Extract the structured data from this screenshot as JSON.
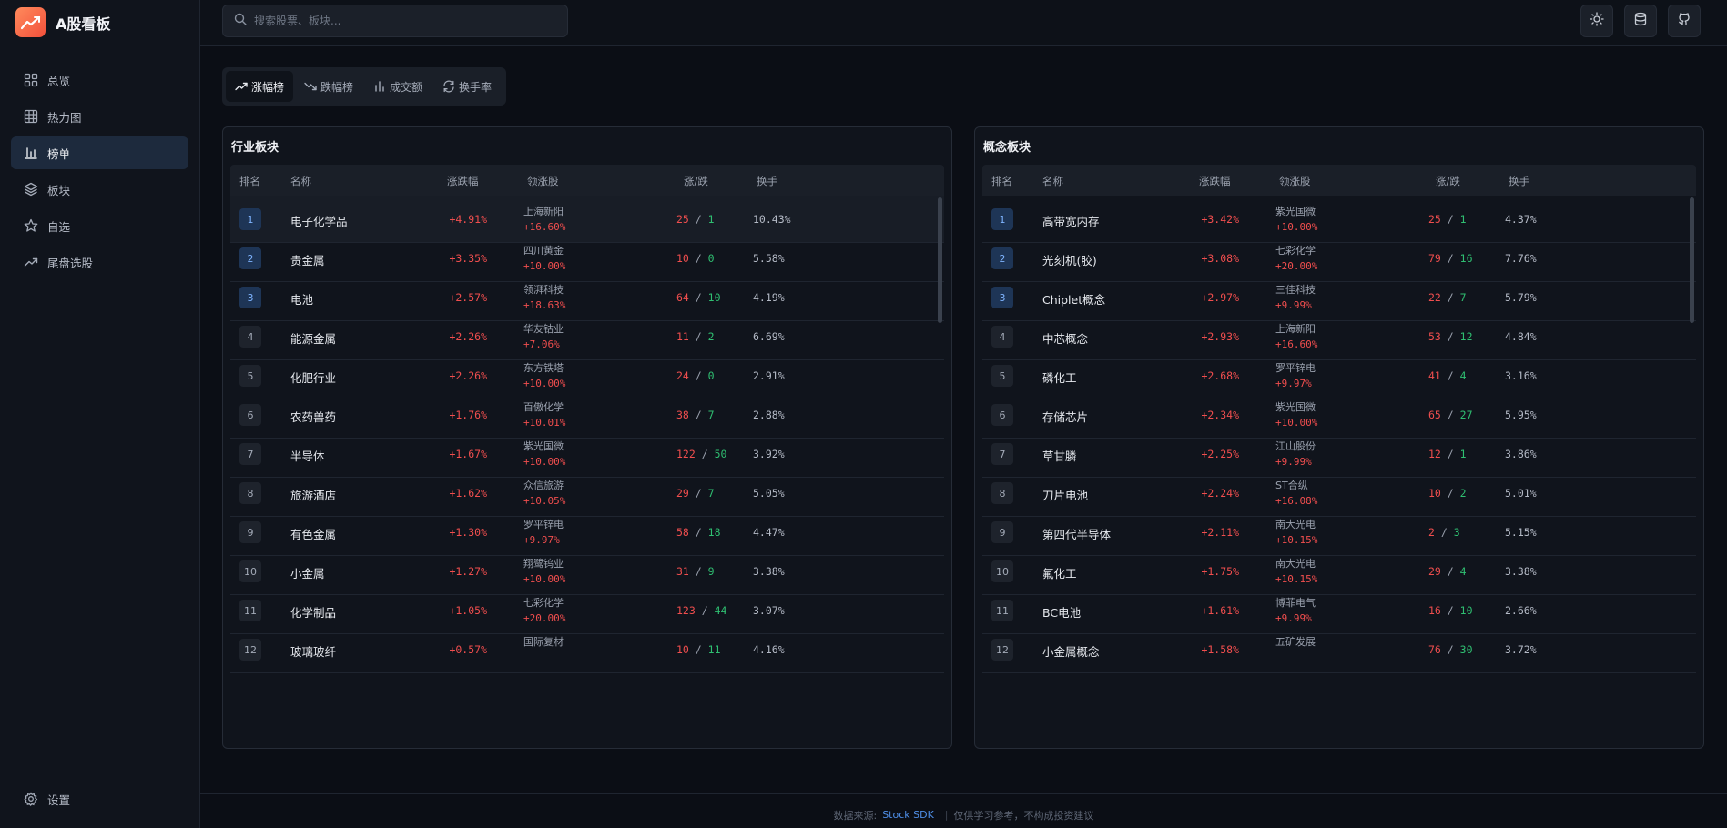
{
  "app": {
    "title": "A股看板"
  },
  "nav": {
    "items": [
      {
        "label": "总览",
        "icon": "grid-icon"
      },
      {
        "label": "热力图",
        "icon": "table-icon"
      },
      {
        "label": "榜单",
        "icon": "bar-chart-icon",
        "active": true
      },
      {
        "label": "板块",
        "icon": "layers-icon"
      },
      {
        "label": "自选",
        "icon": "star-icon"
      },
      {
        "label": "尾盘选股",
        "icon": "trending-up-icon"
      }
    ],
    "settings_label": "设置"
  },
  "search": {
    "placeholder": "搜索股票、板块..."
  },
  "tabs": [
    {
      "label": "涨幅榜",
      "active": true
    },
    {
      "label": "跌幅榜"
    },
    {
      "label": "成交额"
    },
    {
      "label": "换手率"
    }
  ],
  "columns": {
    "rank": "排名",
    "name": "名称",
    "change": "涨跌幅",
    "leader": "领涨股",
    "updown": "涨/跌",
    "turnover": "换手"
  },
  "industry": {
    "title": "行业板块",
    "rows": [
      {
        "rank": "1",
        "name": "电子化学品",
        "change": "+4.91%",
        "leader": "上海新阳",
        "leader_change": "+16.60%",
        "up": "25",
        "down": "1",
        "turnover": "10.43%"
      },
      {
        "rank": "2",
        "name": "贵金属",
        "change": "+3.35%",
        "leader": "四川黄金",
        "leader_change": "+10.00%",
        "up": "10",
        "down": "0",
        "turnover": "5.58%"
      },
      {
        "rank": "3",
        "name": "电池",
        "change": "+2.57%",
        "leader": "领湃科技",
        "leader_change": "+18.63%",
        "up": "64",
        "down": "10",
        "turnover": "4.19%"
      },
      {
        "rank": "4",
        "name": "能源金属",
        "change": "+2.26%",
        "leader": "华友钴业",
        "leader_change": "+7.06%",
        "up": "11",
        "down": "2",
        "turnover": "6.69%"
      },
      {
        "rank": "5",
        "name": "化肥行业",
        "change": "+2.26%",
        "leader": "东方铁塔",
        "leader_change": "+10.00%",
        "up": "24",
        "down": "0",
        "turnover": "2.91%"
      },
      {
        "rank": "6",
        "name": "农药兽药",
        "change": "+1.76%",
        "leader": "百傲化学",
        "leader_change": "+10.01%",
        "up": "38",
        "down": "7",
        "turnover": "2.88%"
      },
      {
        "rank": "7",
        "name": "半导体",
        "change": "+1.67%",
        "leader": "紫光国微",
        "leader_change": "+10.00%",
        "up": "122",
        "down": "50",
        "turnover": "3.92%"
      },
      {
        "rank": "8",
        "name": "旅游酒店",
        "change": "+1.62%",
        "leader": "众信旅游",
        "leader_change": "+10.05%",
        "up": "29",
        "down": "7",
        "turnover": "5.05%"
      },
      {
        "rank": "9",
        "name": "有色金属",
        "change": "+1.30%",
        "leader": "罗平锌电",
        "leader_change": "+9.97%",
        "up": "58",
        "down": "18",
        "turnover": "4.47%"
      },
      {
        "rank": "10",
        "name": "小金属",
        "change": "+1.27%",
        "leader": "翔鹭钨业",
        "leader_change": "+10.00%",
        "up": "31",
        "down": "9",
        "turnover": "3.38%"
      },
      {
        "rank": "11",
        "name": "化学制品",
        "change": "+1.05%",
        "leader": "七彩化学",
        "leader_change": "+20.00%",
        "up": "123",
        "down": "44",
        "turnover": "3.07%"
      },
      {
        "rank": "12",
        "name": "玻璃玻纤",
        "change": "+0.57%",
        "leader": "国际复材",
        "leader_change": "",
        "up": "10",
        "down": "11",
        "turnover": "4.16%"
      }
    ]
  },
  "concept": {
    "title": "概念板块",
    "rows": [
      {
        "rank": "1",
        "name": "高带宽内存",
        "change": "+3.42%",
        "leader": "紫光国微",
        "leader_change": "+10.00%",
        "up": "25",
        "down": "1",
        "turnover": "4.37%"
      },
      {
        "rank": "2",
        "name": "光刻机(胶)",
        "change": "+3.08%",
        "leader": "七彩化学",
        "leader_change": "+20.00%",
        "up": "79",
        "down": "16",
        "turnover": "7.76%"
      },
      {
        "rank": "3",
        "name": "Chiplet概念",
        "change": "+2.97%",
        "leader": "三佳科技",
        "leader_change": "+9.99%",
        "up": "22",
        "down": "7",
        "turnover": "5.79%"
      },
      {
        "rank": "4",
        "name": "中芯概念",
        "change": "+2.93%",
        "leader": "上海新阳",
        "leader_change": "+16.60%",
        "up": "53",
        "down": "12",
        "turnover": "4.84%"
      },
      {
        "rank": "5",
        "name": "磷化工",
        "change": "+2.68%",
        "leader": "罗平锌电",
        "leader_change": "+9.97%",
        "up": "41",
        "down": "4",
        "turnover": "3.16%"
      },
      {
        "rank": "6",
        "name": "存储芯片",
        "change": "+2.34%",
        "leader": "紫光国微",
        "leader_change": "+10.00%",
        "up": "65",
        "down": "27",
        "turnover": "5.95%"
      },
      {
        "rank": "7",
        "name": "草甘膦",
        "change": "+2.25%",
        "leader": "江山股份",
        "leader_change": "+9.99%",
        "up": "12",
        "down": "1",
        "turnover": "3.86%"
      },
      {
        "rank": "8",
        "name": "刀片电池",
        "change": "+2.24%",
        "leader": "ST合纵",
        "leader_change": "+16.08%",
        "up": "10",
        "down": "2",
        "turnover": "5.01%"
      },
      {
        "rank": "9",
        "name": "第四代半导体",
        "change": "+2.11%",
        "leader": "南大光电",
        "leader_change": "+10.15%",
        "up": "2",
        "down": "3",
        "turnover": "5.15%"
      },
      {
        "rank": "10",
        "name": "氟化工",
        "change": "+1.75%",
        "leader": "南大光电",
        "leader_change": "+10.15%",
        "up": "29",
        "down": "4",
        "turnover": "3.38%"
      },
      {
        "rank": "11",
        "name": "BC电池",
        "change": "+1.61%",
        "leader": "博菲电气",
        "leader_change": "+9.99%",
        "up": "16",
        "down": "10",
        "turnover": "2.66%"
      },
      {
        "rank": "12",
        "name": "小金属概念",
        "change": "+1.58%",
        "leader": "五矿发展",
        "leader_change": "",
        "up": "76",
        "down": "30",
        "turnover": "3.72%"
      }
    ]
  },
  "footer": {
    "source_label": "数据来源:",
    "source_link": "Stock SDK",
    "disclaimer": "仅供学习参考，不构成投资建议"
  },
  "colors": {
    "up": "#f04e4e",
    "down": "#2fbf71",
    "accent": "#4f8fe8",
    "brand": "#f2503b"
  }
}
